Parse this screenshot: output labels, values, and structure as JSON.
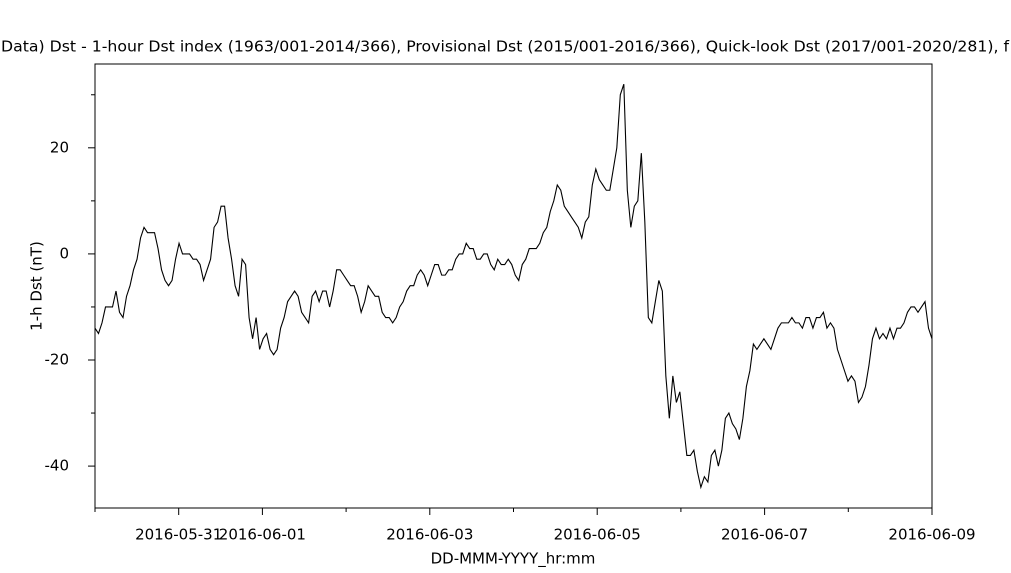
{
  "chart_data": {
    "type": "line",
    "title": "Data)  Dst - 1-hour Dst index (1963/001-2014/366), Provisional Dst (2015/001-2016/366), Quick-look Dst (2017/001-2020/281), f",
    "x_label": "DD-MMM-YYYY_hr:mm",
    "y_label": "1-h Dst (nT)",
    "color": "#000000",
    "xlim": [
      "2016-05-30",
      "2016-06-09"
    ],
    "xticks": [
      "2016-05-31",
      "2016-06-01",
      "2016-06-03",
      "2016-06-05",
      "2016-06-07",
      "2016-06-09"
    ],
    "xticks_minor": [
      "2016-05-30",
      "2016-06-02",
      "2016-06-04",
      "2016-06-06",
      "2016-06-08"
    ],
    "ylim": [
      -47.9,
      35.8
    ],
    "yticks": [
      -40,
      -20,
      0,
      20
    ],
    "yticks_minor": [
      -30,
      -10,
      10,
      30
    ],
    "values": [
      -14,
      -15,
      -13,
      -10,
      -10,
      -10,
      -7,
      -11,
      -12,
      -8,
      -6,
      -3,
      -1,
      3,
      5,
      4,
      4,
      4,
      1,
      -3,
      -5,
      -6,
      -5,
      -1,
      2,
      0,
      0,
      0,
      -1,
      -1,
      -2,
      -5,
      -3,
      -1,
      5,
      6,
      9,
      9,
      3,
      -1,
      -6,
      -8,
      -1,
      -2,
      -12,
      -16,
      -12,
      -18,
      -16,
      -15,
      -18,
      -19,
      -18,
      -14,
      -12,
      -9,
      -8,
      -7,
      -8,
      -11,
      -12,
      -13,
      -8,
      -7,
      -9,
      -7,
      -7,
      -10,
      -7,
      -3,
      -3,
      -4,
      -5,
      -6,
      -6,
      -8,
      -11,
      -9,
      -6,
      -7,
      -8,
      -8,
      -11,
      -12,
      -12,
      -13,
      -12,
      -10,
      -9,
      -7,
      -6,
      -6,
      -4,
      -3,
      -4,
      -6,
      -4,
      -2,
      -2,
      -4,
      -4,
      -3,
      -3,
      -1,
      0,
      0,
      2,
      1,
      1,
      -1,
      -1,
      0,
      0,
      -2,
      -3,
      -1,
      -2,
      -2,
      -1,
      -2,
      -4,
      -5,
      -2,
      -1,
      1,
      1,
      1,
      2,
      4,
      5,
      8,
      10,
      13,
      12,
      9,
      8,
      7,
      6,
      5,
      3,
      6,
      7,
      13,
      16,
      14,
      13,
      12,
      12,
      16,
      20,
      30,
      32,
      12,
      5,
      9,
      10,
      19,
      6,
      -12,
      -13,
      -9,
      -5,
      -7,
      -23,
      -31,
      -23,
      -28,
      -26,
      -32,
      -38,
      -38,
      -37,
      -41,
      -44,
      -42,
      -43,
      -38,
      -37,
      -40,
      -37,
      -31,
      -30,
      -32,
      -33,
      -35,
      -31,
      -25,
      -22,
      -17,
      -18,
      -17,
      -16,
      -17,
      -18,
      -16,
      -14,
      -13,
      -13,
      -13,
      -12,
      -13,
      -13,
      -14,
      -12,
      -12,
      -14,
      -12,
      -12,
      -11,
      -14,
      -13,
      -14,
      -18,
      -20,
      -22,
      -24,
      -23,
      -24,
      -28,
      -27,
      -25,
      -21,
      -16,
      -14,
      -16,
      -15,
      -16,
      -14,
      -16,
      -14,
      -14,
      -13,
      -11,
      -10,
      -10,
      -11,
      -10,
      -9,
      -14,
      -16
    ]
  }
}
